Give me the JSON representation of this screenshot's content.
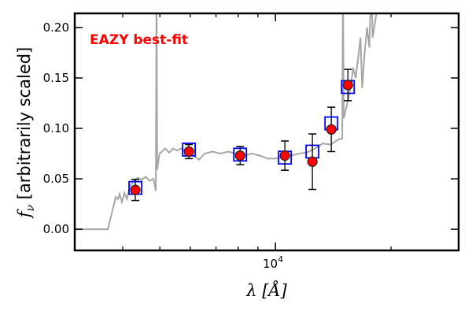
{
  "chart_data": {
    "type": "scatter",
    "title": "",
    "annotation": "EAZY best-fit",
    "xlabel": "λ [Å]",
    "ylabel_main": "f",
    "ylabel_sub": "ν",
    "ylabel_rest": " [arbitrarily scaled]",
    "xscale": "log",
    "xlim": [
      3000,
      30000
    ],
    "ylim": [
      -0.021,
      0.214
    ],
    "xticks": [
      {
        "value": 10000,
        "base": "10",
        "exp": "4"
      }
    ],
    "x_minor_ticks": [
      4000,
      5000,
      6000,
      7000,
      8000,
      9000,
      20000
    ],
    "yticks": [
      {
        "value": 0.0,
        "label": "0.00"
      },
      {
        "value": 0.05,
        "label": "0.05"
      },
      {
        "value": 0.1,
        "label": "0.10"
      },
      {
        "value": 0.15,
        "label": "0.15"
      },
      {
        "value": 0.2,
        "label": "0.20"
      }
    ],
    "colors": {
      "sed": "#a6a6a6",
      "model": "#0000ff",
      "obs": "#ff0000",
      "annotation": "#ff0000"
    },
    "sed_template": {
      "lambda": [
        3000,
        3660,
        3837,
        3890,
        3927,
        3980,
        4040,
        4100,
        4180,
        4280,
        4380,
        4480,
        4590,
        4700,
        4810,
        4880,
        4900,
        4920,
        4990,
        5060,
        5160,
        5290,
        5410,
        5540,
        5680,
        5810,
        6090,
        6330,
        6540,
        6860,
        7190,
        7530,
        7900,
        8280,
        8680,
        9100,
        9540,
        10000,
        10480,
        10990,
        11520,
        12080,
        12660,
        13270,
        13910,
        14580,
        14930,
        14990,
        15060,
        15280,
        15500,
        15740,
        15950,
        16180,
        16420,
        16660,
        16820,
        17070,
        17320,
        17570,
        17740,
        17910,
        18170,
        18430,
        18700
      ],
      "f": [
        0,
        0,
        0.032,
        0.03,
        0.035,
        0.027,
        0.036,
        0.03,
        0.043,
        0.048,
        0.051,
        0.049,
        0.052,
        0.048,
        0.05,
        0.038,
        0.25,
        0.059,
        0.075,
        0.077,
        0.08,
        0.076,
        0.08,
        0.078,
        0.08,
        0.077,
        0.073,
        0.069,
        0.075,
        0.077,
        0.075,
        0.077,
        0.075,
        0.073,
        0.075,
        0.073,
        0.07,
        0.07,
        0.072,
        0.073,
        0.075,
        0.076,
        0.08,
        0.085,
        0.084,
        0.089,
        0.09,
        0.25,
        0.11,
        0.12,
        0.13,
        0.145,
        0.16,
        0.15,
        0.17,
        0.19,
        0.14,
        0.175,
        0.2,
        0.18,
        0.25,
        0.19,
        0.205,
        0.22,
        0.25
      ]
    },
    "series": [
      {
        "name": "model_photometry",
        "marker": "square",
        "lambda": [
          4315,
          5950,
          8090,
          10580,
          12480,
          13980,
          15440
        ],
        "f": [
          0.041,
          0.079,
          0.074,
          0.071,
          0.077,
          0.105,
          0.141
        ]
      },
      {
        "name": "observed_photometry",
        "marker": "circle",
        "lambda": [
          4315,
          5950,
          8090,
          10580,
          12480,
          13980,
          15440
        ],
        "f": [
          0.039,
          0.077,
          0.073,
          0.073,
          0.067,
          0.099,
          0.143
        ],
        "err": [
          0.0105,
          0.007,
          0.009,
          0.0145,
          0.0275,
          0.022,
          0.0155
        ]
      }
    ]
  }
}
